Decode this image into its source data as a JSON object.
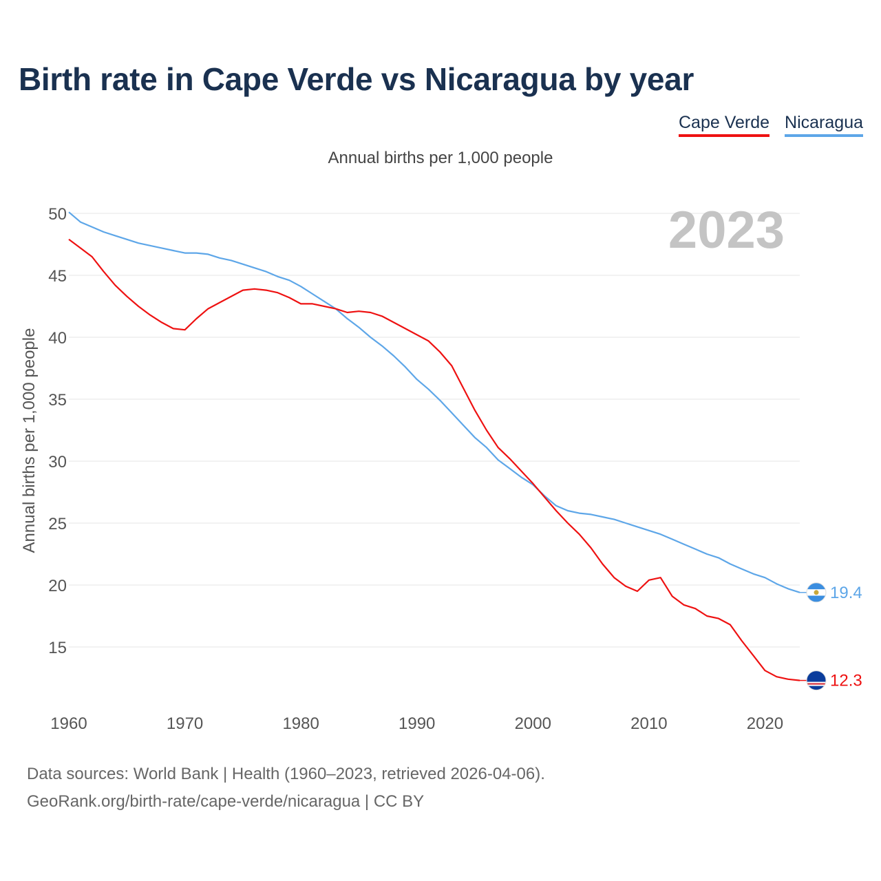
{
  "title": "Birth rate in Cape Verde vs Nicaragua by year",
  "subtitle": "Annual births per 1,000 people",
  "year_label": "2023",
  "legend": [
    {
      "name": "Cape Verde",
      "color": "#ee1111"
    },
    {
      "name": "Nicaragua",
      "color": "#5da6e8"
    }
  ],
  "source": {
    "line1": "Data sources: World Bank | Health (1960–2023, retrieved 2026-04-06).",
    "line2": "GeoRank.org/birth-rate/cape-verde/nicaragua | CC BY"
  },
  "chart_data": {
    "type": "line",
    "title": "Birth rate in Cape Verde vs Nicaragua by year",
    "xlabel": "",
    "ylabel": "Annual births per 1,000 people",
    "xlim": [
      1960,
      2023
    ],
    "ylim": [
      11,
      51
    ],
    "x_ticks": [
      1960,
      1970,
      1980,
      1990,
      2000,
      2010,
      2020
    ],
    "y_ticks": [
      15,
      20,
      25,
      30,
      35,
      40,
      45,
      50
    ],
    "grid": true,
    "legend_position": "top-right",
    "x": [
      1960,
      1961,
      1962,
      1963,
      1964,
      1965,
      1966,
      1967,
      1968,
      1969,
      1970,
      1971,
      1972,
      1973,
      1974,
      1975,
      1976,
      1977,
      1978,
      1979,
      1980,
      1981,
      1982,
      1983,
      1984,
      1985,
      1986,
      1987,
      1988,
      1989,
      1990,
      1991,
      1992,
      1993,
      1994,
      1995,
      1996,
      1997,
      1998,
      1999,
      2000,
      2001,
      2002,
      2003,
      2004,
      2005,
      2006,
      2007,
      2008,
      2009,
      2010,
      2011,
      2012,
      2013,
      2014,
      2015,
      2016,
      2017,
      2018,
      2019,
      2020,
      2021,
      2022,
      2023
    ],
    "series": [
      {
        "name": "Cape Verde",
        "color": "#ee1111",
        "end_label": "12.3",
        "values": [
          47.9,
          47.2,
          46.5,
          45.3,
          44.2,
          43.3,
          42.5,
          41.8,
          41.2,
          40.7,
          40.6,
          41.5,
          42.3,
          42.8,
          43.3,
          43.8,
          43.9,
          43.8,
          43.6,
          43.2,
          42.7,
          42.7,
          42.5,
          42.3,
          42.0,
          42.1,
          42.0,
          41.7,
          41.2,
          40.7,
          40.2,
          39.7,
          38.8,
          37.7,
          35.9,
          34.1,
          32.5,
          31.1,
          30.2,
          29.2,
          28.2,
          27.1,
          26.0,
          25.0,
          24.1,
          23.0,
          21.7,
          20.6,
          19.9,
          19.5,
          20.4,
          20.6,
          19.1,
          18.4,
          18.1,
          17.5,
          17.3,
          16.8,
          15.5,
          14.3,
          13.1,
          12.6,
          12.4,
          12.3
        ]
      },
      {
        "name": "Nicaragua",
        "color": "#5da6e8",
        "end_label": "19.4",
        "values": [
          50.1,
          49.3,
          48.9,
          48.5,
          48.2,
          47.9,
          47.6,
          47.4,
          47.2,
          47.0,
          46.8,
          46.8,
          46.7,
          46.4,
          46.2,
          45.9,
          45.6,
          45.3,
          44.9,
          44.6,
          44.1,
          43.5,
          42.9,
          42.3,
          41.5,
          40.8,
          40.0,
          39.3,
          38.5,
          37.6,
          36.6,
          35.8,
          34.9,
          33.9,
          32.9,
          31.9,
          31.1,
          30.1,
          29.4,
          28.7,
          28.1,
          27.2,
          26.4,
          26.0,
          25.8,
          25.7,
          25.5,
          25.3,
          25.0,
          24.7,
          24.4,
          24.1,
          23.7,
          23.3,
          22.9,
          22.5,
          22.2,
          21.7,
          21.3,
          20.9,
          20.6,
          20.1,
          19.7,
          19.4
        ]
      }
    ]
  }
}
